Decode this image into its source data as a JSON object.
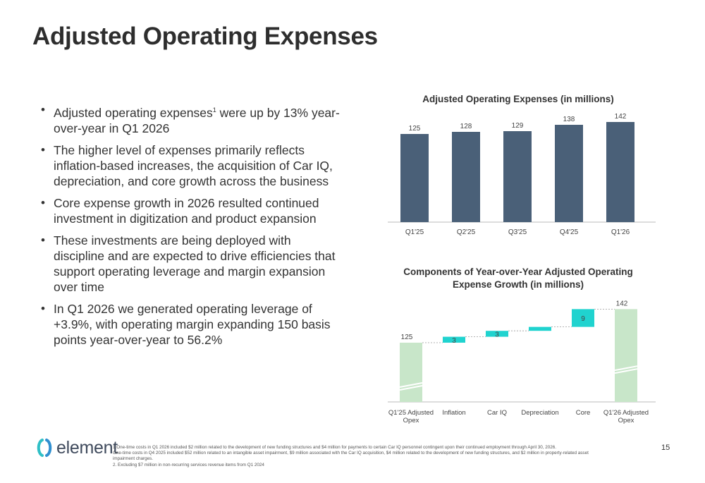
{
  "slide": {
    "title": "Adjusted Operating Expenses",
    "page_number": "15"
  },
  "bullets": [
    {
      "pre": "Adjusted operating expenses",
      "sup": "1",
      "post": " were up by 13% year-over-year in Q1 2026"
    },
    {
      "pre": "The higher level of expenses primarily reflects inflation-based increases, the acquisition of Car IQ, depreciation, and core growth across the business",
      "sup": "",
      "post": ""
    },
    {
      "pre": "Core expense growth in 2026 resulted continued investment in digitization and product expansion",
      "sup": "",
      "post": ""
    },
    {
      "pre": "These investments are being deployed with discipline and are expected to drive efficiencies that support operating leverage and margin expansion over time",
      "sup": "",
      "post": ""
    },
    {
      "pre": "In Q1 2026 we generated operating leverage of +3.9%, with operating margin expanding 150 basis points year-over-year to 56.2%",
      "sup": "",
      "post": ""
    }
  ],
  "logo": {
    "text": "element",
    "icon": "element-logo-icon"
  },
  "footnotes": [
    "1.One-time costs in Q1 2026 included $2 million related to the development of new funding structures and $4 million for payments to certain Car IQ personnel contingent upon their continued employment through April 30, 2026.",
    "One-time costs in Q4 2025 included $52 million related to an intangible asset impairment, $9 million associated with the Car IQ acquisition, $4 million related to the development of new funding structures, and $2 million in property-related asset impairment charges.",
    "2. Excluding $7 million in non-recurring services revenue items from Q1 2024"
  ],
  "colors": {
    "bar": "#4a6078",
    "increase": "#20d3cf",
    "total": "#c8e6c9",
    "connector": "#9a9a9a",
    "axis": "#bbbbbb"
  },
  "chart_data": [
    {
      "type": "bar",
      "title": "Adjusted Operating Expenses (in millions)",
      "categories": [
        "Q1'25",
        "Q2'25",
        "Q3'25",
        "Q4'25",
        "Q1'26"
      ],
      "values": [
        125,
        128,
        129,
        138,
        142
      ],
      "xlabel": "",
      "ylabel": "",
      "ylim": [
        0,
        145
      ],
      "grid": false
    },
    {
      "type": "bar",
      "subtype": "waterfall",
      "title": "Components of Year-over-Year Adjusted Operating Expense Growth (in millions)",
      "categories": [
        "Q1'25 Adjusted Opex",
        "Inflation",
        "Car IQ",
        "Depreciation",
        "Core",
        "Q1'26 Adjusted Opex"
      ],
      "steps": [
        {
          "label": "Q1'25 Adjusted Opex",
          "kind": "total",
          "value": 125
        },
        {
          "label": "Inflation",
          "kind": "delta",
          "value": 3
        },
        {
          "label": "Car IQ",
          "kind": "delta",
          "value": 3
        },
        {
          "label": "Depreciation",
          "kind": "delta",
          "value": 2
        },
        {
          "label": "Core",
          "kind": "delta",
          "value": 9
        },
        {
          "label": "Q1'26 Adjusted Opex",
          "kind": "total",
          "value": 142
        }
      ],
      "value_labels": [
        "125",
        "3",
        "3",
        "",
        "9",
        "142"
      ],
      "ylim": [
        95,
        145
      ],
      "axis_break": true,
      "grid": false
    }
  ]
}
